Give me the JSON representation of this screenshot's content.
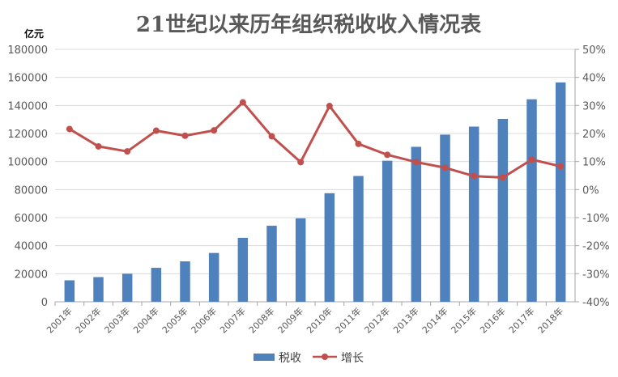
{
  "chart_data": {
    "type": "bar",
    "title": "21世纪以来历年组织税收收入情况表",
    "y_unit": "亿元",
    "categories": [
      "2001年",
      "2002年",
      "2003年",
      "2004年",
      "2005年",
      "2006年",
      "2007年",
      "2008年",
      "2009年",
      "2010年",
      "2011年",
      "2012年",
      "2013年",
      "2014年",
      "2015年",
      "2016年",
      "2017年",
      "2018年"
    ],
    "ylim": [
      0,
      180000
    ],
    "yticks": [
      "0",
      "20000",
      "40000",
      "60000",
      "80000",
      "100000",
      "120000",
      "140000",
      "160000",
      "180000"
    ],
    "y2lim": [
      -40,
      50
    ],
    "y2ticks": [
      "-40%",
      "-30%",
      "-20%",
      "-10%",
      "0%",
      "10%",
      "20%",
      "30%",
      "40%",
      "50%"
    ],
    "grid": true,
    "legend_position": "bottom",
    "series": [
      {
        "name": "税收",
        "type": "bar",
        "axis": "left",
        "color": "#4F81BD",
        "values": [
          15300,
          17600,
          20000,
          24200,
          28800,
          34800,
          45600,
          54200,
          59500,
          77400,
          89700,
          100600,
          110500,
          119200,
          124900,
          130400,
          144400,
          156400
        ]
      },
      {
        "name": "增长",
        "type": "line",
        "axis": "right",
        "color": "#C0504D",
        "values": [
          21.6,
          15.4,
          13.6,
          21.0,
          19.2,
          21.1,
          31.1,
          19.0,
          9.8,
          29.8,
          16.3,
          12.4,
          9.8,
          7.8,
          4.8,
          4.3,
          10.7,
          8.3
        ]
      }
    ]
  }
}
